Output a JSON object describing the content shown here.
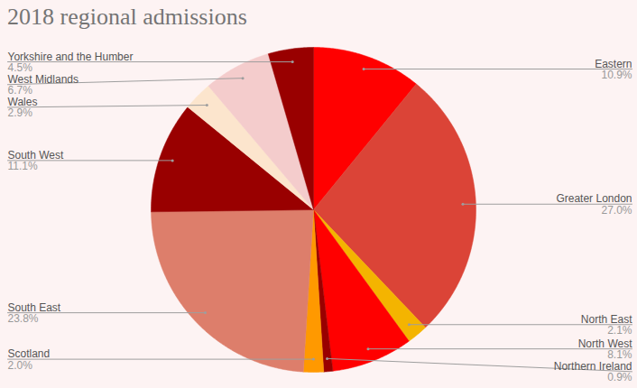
{
  "chart_data": {
    "type": "pie",
    "title": "2018 regional admissions",
    "categories": [
      "Eastern",
      "Greater London",
      "North East",
      "North West",
      "Northern Ireland",
      "Scotland",
      "South East",
      "South West",
      "Wales",
      "West Midlands",
      "Yorkshire and the Humber"
    ],
    "values": [
      10.9,
      27.0,
      2.1,
      8.1,
      0.9,
      2.0,
      23.8,
      11.1,
      2.9,
      6.7,
      4.5
    ],
    "value_labels": [
      "10.9%",
      "27.0%",
      "2.1%",
      "8.1%",
      "0.9%",
      "2.0%",
      "23.8%",
      "11.1%",
      "2.9%",
      "6.7%",
      "4.5%"
    ],
    "colors": [
      "#ff0000",
      "#db4437",
      "#f4b400",
      "#ff0000",
      "#990000",
      "#ff9900",
      "#dd7e6b",
      "#990000",
      "#fce5cd",
      "#f4cccc",
      "#990000"
    ],
    "data_labels": true
  }
}
